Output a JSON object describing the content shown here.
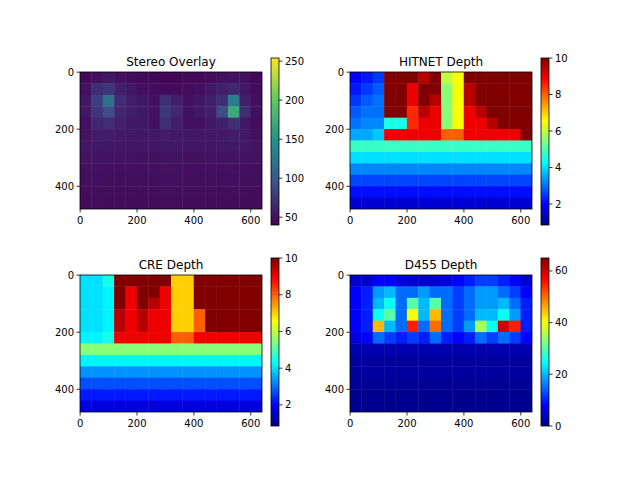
{
  "chart_data": [
    {
      "type": "heatmap",
      "title": "Stereo Overlay",
      "color": "viridis",
      "xlim": [
        -0.5,
        639.5
      ],
      "ylim": [
        479.5,
        -0.5
      ],
      "xticks": [
        0,
        200,
        400,
        600
      ],
      "yticks": [
        0,
        200,
        400
      ],
      "colorbar_range": [
        40,
        254
      ],
      "colorbar_ticks": [
        50,
        100,
        150,
        200,
        250
      ],
      "cells": [
        [
          45,
          50,
          55,
          50,
          48,
          46,
          45,
          44,
          44,
          45,
          46,
          48,
          50,
          52,
          50,
          45
        ],
        [
          50,
          70,
          75,
          60,
          55,
          50,
          48,
          46,
          46,
          48,
          50,
          55,
          60,
          65,
          55,
          48
        ],
        [
          55,
          80,
          120,
          70,
          60,
          55,
          50,
          70,
          60,
          50,
          55,
          60,
          70,
          130,
          60,
          50
        ],
        [
          55,
          75,
          90,
          65,
          60,
          55,
          50,
          75,
          65,
          50,
          55,
          60,
          90,
          170,
          70,
          50
        ],
        [
          50,
          65,
          70,
          60,
          55,
          55,
          50,
          70,
          60,
          50,
          50,
          55,
          60,
          70,
          55,
          48
        ],
        [
          52,
          58,
          58,
          56,
          55,
          55,
          55,
          58,
          56,
          55,
          55,
          55,
          56,
          58,
          55,
          50
        ],
        [
          54,
          56,
          55,
          54,
          54,
          54,
          54,
          55,
          55,
          54,
          54,
          54,
          55,
          56,
          55,
          54
        ],
        [
          52,
          53,
          52,
          52,
          52,
          51,
          51,
          52,
          52,
          51,
          51,
          52,
          52,
          53,
          52,
          52
        ],
        [
          50,
          51,
          50,
          50,
          50,
          50,
          50,
          51,
          51,
          50,
          50,
          50,
          50,
          51,
          50,
          50
        ],
        [
          49,
          50,
          49,
          49,
          49,
          49,
          49,
          50,
          50,
          49,
          49,
          49,
          49,
          50,
          49,
          49
        ],
        [
          48,
          49,
          48,
          48,
          48,
          48,
          48,
          49,
          49,
          48,
          48,
          48,
          48,
          49,
          48,
          48
        ],
        [
          47,
          48,
          47,
          47,
          47,
          47,
          47,
          48,
          48,
          47,
          47,
          47,
          47,
          48,
          47,
          47
        ]
      ]
    },
    {
      "type": "heatmap",
      "title": "HITNET Depth",
      "color": "jet",
      "xlim": [
        -0.5,
        639.5
      ],
      "ylim": [
        479.5,
        -0.5
      ],
      "xticks": [
        0,
        200,
        400,
        600
      ],
      "yticks": [
        0,
        200,
        400
      ],
      "colorbar_range": [
        0.85,
        10
      ],
      "colorbar_ticks": [
        2,
        4,
        6,
        8,
        10
      ],
      "cells": [
        [
          2.0,
          2.2,
          2.5,
          10,
          10,
          10,
          9.5,
          10,
          6,
          6.5,
          10,
          10,
          10,
          10,
          10,
          10
        ],
        [
          2.2,
          2.5,
          2.8,
          10,
          10,
          9,
          10,
          10,
          5.5,
          6.5,
          9.5,
          10,
          10,
          10,
          10,
          10
        ],
        [
          2.5,
          2.8,
          3.0,
          10,
          10,
          9,
          10,
          9.5,
          5.5,
          6.5,
          9.5,
          10,
          10,
          10,
          10,
          10
        ],
        [
          2.8,
          3.0,
          3.0,
          10,
          10,
          8.5,
          9.5,
          9,
          5.5,
          6.5,
          9,
          9.5,
          10,
          10,
          10,
          10
        ],
        [
          3.0,
          3.2,
          3.2,
          4.5,
          4.5,
          8.5,
          9,
          9,
          5.5,
          6.5,
          9,
          9,
          9.5,
          10,
          10,
          10
        ],
        [
          3.5,
          3.5,
          3.8,
          9,
          9,
          9,
          9,
          9,
          8,
          8,
          9,
          9,
          9,
          9,
          9,
          10
        ],
        [
          4.8,
          4.8,
          4.8,
          4.8,
          4.8,
          4.8,
          4.8,
          4.8,
          4.8,
          4.8,
          4.8,
          4.8,
          4.8,
          4.8,
          4.8,
          4.8
        ],
        [
          4.0,
          4.0,
          4.0,
          4.0,
          4.0,
          4.0,
          4.0,
          4.0,
          4.0,
          4.0,
          4.0,
          4.0,
          4.0,
          4.0,
          4.0,
          4.0
        ],
        [
          3.2,
          3.2,
          3.2,
          3.2,
          3.2,
          3.2,
          3.2,
          3.2,
          3.2,
          3.2,
          3.2,
          3.2,
          3.2,
          3.2,
          3.2,
          3.2
        ],
        [
          2.6,
          2.6,
          2.6,
          2.6,
          2.6,
          2.6,
          2.6,
          2.6,
          2.6,
          2.6,
          2.6,
          2.6,
          2.6,
          2.6,
          2.6,
          2.6
        ],
        [
          2.1,
          2.1,
          2.1,
          2.1,
          2.1,
          2.1,
          2.1,
          2.1,
          2.1,
          2.1,
          2.1,
          2.1,
          2.1,
          2.1,
          2.1,
          2.1
        ],
        [
          1.6,
          1.6,
          1.6,
          1.6,
          1.6,
          1.6,
          1.6,
          1.6,
          1.6,
          1.6,
          1.6,
          1.6,
          1.6,
          1.6,
          1.6,
          1.6
        ]
      ]
    },
    {
      "type": "heatmap",
      "title": "CRE Depth",
      "color": "jet",
      "xlim": [
        -0.5,
        639.5
      ],
      "ylim": [
        479.5,
        -0.5
      ],
      "xticks": [
        0,
        200,
        400,
        600
      ],
      "yticks": [
        0,
        200,
        400
      ],
      "colorbar_range": [
        0.85,
        10
      ],
      "colorbar_ticks": [
        2,
        4,
        6,
        8,
        10
      ],
      "cells": [
        [
          4,
          4,
          4.5,
          10,
          10,
          10,
          10,
          10,
          7,
          7,
          10,
          10,
          10,
          10,
          10,
          10
        ],
        [
          4,
          4,
          4.2,
          10,
          9,
          10,
          10,
          9,
          7,
          7,
          10,
          10,
          10,
          10,
          10,
          10
        ],
        [
          4,
          4,
          4.2,
          10,
          9,
          10,
          9.5,
          9,
          7,
          7,
          10,
          10,
          10,
          10,
          10,
          10
        ],
        [
          4,
          4,
          4.2,
          9.5,
          9,
          9.5,
          9,
          9,
          7,
          7,
          8,
          10,
          10,
          10,
          10,
          10
        ],
        [
          4,
          4,
          4.2,
          9.5,
          9,
          9.5,
          9,
          9,
          7,
          7,
          8,
          10,
          10,
          10,
          10,
          10
        ],
        [
          4.2,
          4.2,
          4.5,
          9,
          9,
          9,
          9,
          9,
          8,
          8,
          9,
          9,
          9,
          9,
          9,
          9
        ],
        [
          5.5,
          5.5,
          5.5,
          5.5,
          5.5,
          5.5,
          5.5,
          5.5,
          5.5,
          5.5,
          5.5,
          5.5,
          5.5,
          5.5,
          5.5,
          5.5
        ],
        [
          4.2,
          4.2,
          4.2,
          4.2,
          4.2,
          4.2,
          4.2,
          4.2,
          4.2,
          4.2,
          4.2,
          4.2,
          4.2,
          4.2,
          4.2,
          4.2
        ],
        [
          3.3,
          3.3,
          3.3,
          3.3,
          3.3,
          3.3,
          3.3,
          3.3,
          3.3,
          3.3,
          3.3,
          3.3,
          3.3,
          3.3,
          3.3,
          3.3
        ],
        [
          2.7,
          2.7,
          2.7,
          2.7,
          2.7,
          2.7,
          2.7,
          2.7,
          2.7,
          2.7,
          2.7,
          2.7,
          2.7,
          2.7,
          2.7,
          2.7
        ],
        [
          2.2,
          2.2,
          2.2,
          2.2,
          2.2,
          2.2,
          2.2,
          2.2,
          2.2,
          2.2,
          2.2,
          2.2,
          2.2,
          2.2,
          2.2,
          2.2
        ],
        [
          1.7,
          1.7,
          1.7,
          1.7,
          1.7,
          1.7,
          1.7,
          1.7,
          1.7,
          1.7,
          1.7,
          1.7,
          1.7,
          1.7,
          1.7,
          1.7
        ]
      ]
    },
    {
      "type": "heatmap",
      "title": "D455 Depth",
      "color": "jet",
      "xlim": [
        -0.5,
        639.5
      ],
      "ylim": [
        479.5,
        -0.5
      ],
      "xticks": [
        0,
        200,
        400,
        600
      ],
      "yticks": [
        0,
        200,
        400
      ],
      "colorbar_range": [
        0,
        65
      ],
      "colorbar_ticks": [
        0,
        20,
        40,
        60
      ],
      "cells": [
        [
          5,
          5,
          8,
          8,
          6,
          5,
          5,
          5,
          6,
          8,
          10,
          12,
          12,
          10,
          8,
          5
        ],
        [
          8,
          10,
          18,
          20,
          15,
          15,
          18,
          15,
          15,
          12,
          15,
          18,
          18,
          15,
          12,
          8
        ],
        [
          8,
          10,
          20,
          25,
          15,
          30,
          20,
          30,
          15,
          12,
          15,
          18,
          18,
          20,
          15,
          10
        ],
        [
          8,
          10,
          25,
          30,
          15,
          40,
          20,
          45,
          15,
          12,
          15,
          20,
          20,
          25,
          18,
          10
        ],
        [
          8,
          10,
          45,
          20,
          15,
          55,
          15,
          50,
          15,
          12,
          18,
          35,
          25,
          60,
          55,
          10
        ],
        [
          6,
          8,
          15,
          12,
          10,
          12,
          10,
          15,
          10,
          8,
          10,
          15,
          12,
          15,
          12,
          8
        ],
        [
          3,
          3,
          3,
          3,
          3,
          3,
          3,
          3,
          3,
          3,
          3,
          3,
          3,
          3,
          3,
          3
        ],
        [
          2,
          2,
          2,
          2,
          2,
          2,
          2,
          2,
          2,
          2,
          2,
          2,
          2,
          2,
          2,
          2
        ],
        [
          2,
          2,
          2,
          2,
          2,
          2,
          2,
          2,
          2,
          2,
          2,
          2,
          2,
          2,
          2,
          2
        ],
        [
          1.5,
          1.5,
          1.5,
          1.5,
          1.5,
          1.5,
          1.5,
          1.5,
          1.5,
          1.5,
          1.5,
          1.5,
          1.5,
          1.5,
          1.5,
          1.5
        ],
        [
          1,
          1,
          1,
          1,
          1,
          1,
          1,
          1,
          1,
          1,
          1,
          1,
          1,
          1,
          1,
          1
        ],
        [
          1,
          1,
          1,
          1,
          1,
          1,
          1,
          1,
          1,
          1,
          1,
          1,
          1,
          1,
          1,
          1
        ]
      ]
    }
  ]
}
